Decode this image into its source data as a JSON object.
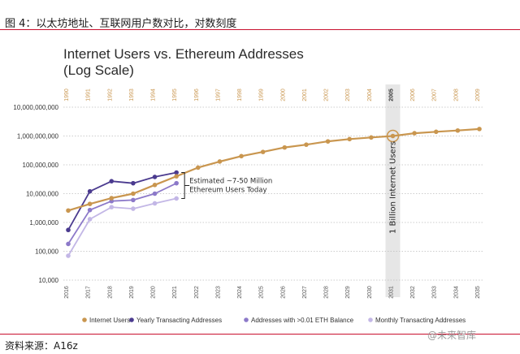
{
  "figure": {
    "caption": "图 4：以太坊地址、互联网用户数对比，对数刻度",
    "source": "资料来源：A16z",
    "watermark": "@未来智库"
  },
  "chart_data": {
    "type": "line",
    "title_line1": "Internet Users vs. Ethereum Addresses",
    "title_line2": "(Log Scale)",
    "yscale": "log",
    "ylim": [
      10000,
      10000000000
    ],
    "y_ticks": [
      {
        "value": 10000000000,
        "label": "10,000,000,000"
      },
      {
        "value": 1000000000,
        "label": "1,000,000,000"
      },
      {
        "value": 100000000,
        "label": "100,000,000"
      },
      {
        "value": 10000000,
        "label": "10,000,000"
      },
      {
        "value": 1000000,
        "label": "1,000,000"
      },
      {
        "value": 100000,
        "label": "100,000"
      },
      {
        "value": 10000,
        "label": "10,000"
      }
    ],
    "x_bottom": [
      "2016",
      "2017",
      "2018",
      "2019",
      "2020",
      "2021",
      "2022",
      "2023",
      "2024",
      "2025",
      "2026",
      "2027",
      "2028",
      "2029",
      "2030",
      "2031",
      "2032",
      "2033",
      "2034",
      "2035"
    ],
    "x_top": [
      "1990",
      "1991",
      "1992",
      "1993",
      "1994",
      "1995",
      "1996",
      "1997",
      "1998",
      "1999",
      "2000",
      "2001",
      "2002",
      "2003",
      "2004",
      "2005",
      "2006",
      "2007",
      "2008",
      "2009"
    ],
    "highlight_top": "2005",
    "series": [
      {
        "name": "Internet Users",
        "color": "#c9964f",
        "line_width": 2.2,
        "values": [
          2600000,
          4400000,
          7000000,
          10000000,
          20000000,
          40000000,
          80000000,
          130000000,
          200000000,
          280000000,
          400000000,
          500000000,
          650000000,
          780000000,
          890000000,
          1000000000,
          1250000000,
          1400000000,
          1550000000,
          1750000000
        ]
      },
      {
        "name": "Yearly Transacting Addresses",
        "color": "#4b3b8f",
        "line_width": 1.8,
        "values": [
          550000,
          12000000,
          27000000,
          23000000,
          38000000,
          54000000
        ]
      },
      {
        "name": "Addresses with >0.01 ETH Balance",
        "color": "#8c79c9",
        "line_width": 1.8,
        "values": [
          180000,
          2700000,
          5500000,
          6000000,
          10000000,
          23000000
        ]
      },
      {
        "name": "Monthly Transacting Addresses",
        "color": "#c3b7e6",
        "line_width": 1.8,
        "values": [
          70000,
          1300000,
          3400000,
          3000000,
          4600000,
          6800000
        ]
      }
    ],
    "annotation": {
      "line1": "Estimated ~7-50 Million",
      "line2": "Ethereum Users Today"
    },
    "milestone": {
      "label": "1 Billion Internet Users"
    },
    "legend_position": "bottom",
    "grid": "horizontal-dotted"
  }
}
